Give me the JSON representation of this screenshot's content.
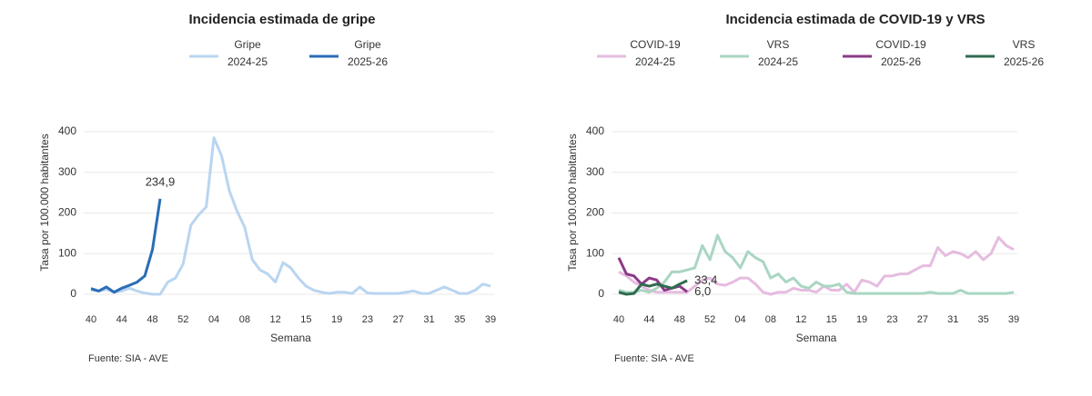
{
  "chart_data": [
    {
      "type": "line",
      "title": "Incidencia estimada de gripe",
      "y_label": "Tasa por 100.000 habitantes",
      "x_label": "Semana",
      "source": "Fuente: SIA - AVE",
      "categories": [
        "40",
        null,
        null,
        null,
        "44",
        null,
        null,
        null,
        "48",
        null,
        null,
        null,
        "52",
        null,
        null,
        null,
        "04",
        null,
        null,
        null,
        "08",
        null,
        null,
        null,
        "12",
        null,
        null,
        null,
        "15",
        null,
        null,
        null,
        "19",
        null,
        null,
        null,
        "23",
        null,
        null,
        null,
        "27",
        null,
        null,
        null,
        "31",
        null,
        null,
        null,
        "35",
        null,
        null,
        null,
        "39"
      ],
      "ylim": [
        0,
        450
      ],
      "yticks": [
        0,
        100,
        200,
        300,
        400
      ],
      "grid": true,
      "series": [
        {
          "name": "Gripe 2024-25",
          "color": "#b9d5f0",
          "values": [
            10,
            8,
            12,
            5,
            8,
            15,
            8,
            3,
            0,
            0,
            30,
            40,
            75,
            170,
            195,
            215,
            385,
            340,
            255,
            205,
            165,
            85,
            60,
            50,
            30,
            78,
            65,
            40,
            20,
            10,
            5,
            2,
            5,
            5,
            2,
            18,
            3,
            2,
            2,
            2,
            2,
            5,
            8,
            2,
            2,
            10,
            18,
            10,
            2,
            2,
            10,
            25,
            20
          ]
        },
        {
          "name": "Gripe 2025-26",
          "color": "#2a6db5",
          "values": [
            14,
            8,
            18,
            5,
            15,
            22,
            30,
            45,
            110,
            234.9,
            null,
            null,
            null,
            null,
            null,
            null,
            null,
            null,
            null,
            null,
            null,
            null,
            null,
            null,
            null,
            null,
            null,
            null,
            null,
            null,
            null,
            null,
            null,
            null,
            null,
            null,
            null,
            null,
            null,
            null,
            null,
            null,
            null,
            null,
            null,
            null,
            null,
            null,
            null,
            null,
            null,
            null,
            null
          ],
          "value_labels": [
            null,
            null,
            null,
            null,
            null,
            null,
            null,
            null,
            null,
            "234,9",
            null,
            null,
            null,
            null,
            null,
            null,
            null,
            null,
            null,
            null,
            null,
            null,
            null,
            null,
            null,
            null,
            null,
            null,
            null,
            null,
            null,
            null,
            null,
            null,
            null,
            null,
            null,
            null,
            null,
            null,
            null,
            null,
            null,
            null,
            null,
            null,
            null,
            null,
            null,
            null,
            null,
            null,
            null
          ]
        }
      ]
    },
    {
      "type": "line",
      "title": "Incidencia estimada de COVID-19 y VRS",
      "y_label": "Tasa por 100.000 habitantes",
      "x_label": "Semana",
      "source": "Fuente: SIA - AVE",
      "categories": [
        "40",
        null,
        null,
        null,
        "44",
        null,
        null,
        null,
        "48",
        null,
        null,
        null,
        "52",
        null,
        null,
        null,
        "04",
        null,
        null,
        null,
        "08",
        null,
        null,
        null,
        "12",
        null,
        null,
        null,
        "15",
        null,
        null,
        null,
        "19",
        null,
        null,
        null,
        "23",
        null,
        null,
        null,
        "27",
        null,
        null,
        null,
        "31",
        null,
        null,
        null,
        "35",
        null,
        null,
        null,
        "39"
      ],
      "ylim": [
        0,
        450
      ],
      "yticks": [
        0,
        100,
        200,
        300,
        400
      ],
      "grid": true,
      "series": [
        {
          "name": "COVID-19 2024-25",
          "color": "#e6bce0",
          "values": [
            55,
            45,
            30,
            20,
            10,
            5,
            5,
            5,
            5,
            5,
            20,
            35,
            40,
            25,
            22,
            30,
            40,
            40,
            25,
            5,
            0,
            5,
            5,
            15,
            10,
            10,
            5,
            20,
            10,
            10,
            25,
            5,
            35,
            30,
            20,
            45,
            45,
            50,
            50,
            60,
            70,
            70,
            115,
            95,
            105,
            100,
            90,
            105,
            85,
            100,
            140,
            120,
            110
          ]
        },
        {
          "name": "VRS 2024-25",
          "color": "#a9d6c2",
          "values": [
            10,
            5,
            5,
            10,
            5,
            15,
            30,
            55,
            55,
            60,
            65,
            120,
            85,
            145,
            105,
            90,
            65,
            105,
            90,
            80,
            40,
            50,
            30,
            40,
            20,
            15,
            30,
            20,
            20,
            25,
            5,
            2,
            2,
            2,
            2,
            2,
            2,
            2,
            2,
            2,
            2,
            5,
            2,
            2,
            2,
            10,
            2,
            2,
            2,
            2,
            2,
            2,
            5
          ]
        },
        {
          "name": "COVID-19 2025-26",
          "color": "#8b3a87",
          "values": [
            90,
            50,
            45,
            25,
            40,
            35,
            10,
            15,
            20,
            6.0,
            null,
            null,
            null,
            null,
            null,
            null,
            null,
            null,
            null,
            null,
            null,
            null,
            null,
            null,
            null,
            null,
            null,
            null,
            null,
            null,
            null,
            null,
            null,
            null,
            null,
            null,
            null,
            null,
            null,
            null,
            null,
            null,
            null,
            null,
            null,
            null,
            null,
            null,
            null,
            null,
            null,
            null,
            null
          ],
          "value_labels": [
            null,
            null,
            null,
            null,
            null,
            null,
            null,
            null,
            null,
            "6,0",
            null,
            null,
            null,
            null,
            null,
            null,
            null,
            null,
            null,
            null,
            null,
            null,
            null,
            null,
            null,
            null,
            null,
            null,
            null,
            null,
            null,
            null,
            null,
            null,
            null,
            null,
            null,
            null,
            null,
            null,
            null,
            null,
            null,
            null,
            null,
            null,
            null,
            null,
            null,
            null,
            null,
            null,
            null
          ]
        },
        {
          "name": "VRS 2025-26",
          "color": "#2f6b50",
          "values": [
            5,
            0,
            2,
            25,
            20,
            25,
            20,
            15,
            25,
            33.4,
            null,
            null,
            null,
            null,
            null,
            null,
            null,
            null,
            null,
            null,
            null,
            null,
            null,
            null,
            null,
            null,
            null,
            null,
            null,
            null,
            null,
            null,
            null,
            null,
            null,
            null,
            null,
            null,
            null,
            null,
            null,
            null,
            null,
            null,
            null,
            null,
            null,
            null,
            null,
            null,
            null,
            null,
            null
          ],
          "value_labels": [
            null,
            null,
            null,
            null,
            null,
            null,
            null,
            null,
            null,
            "33,4",
            null,
            null,
            null,
            null,
            null,
            null,
            null,
            null,
            null,
            null,
            null,
            null,
            null,
            null,
            null,
            null,
            null,
            null,
            null,
            null,
            null,
            null,
            null,
            null,
            null,
            null,
            null,
            null,
            null,
            null,
            null,
            null,
            null,
            null,
            null,
            null,
            null,
            null,
            null,
            null,
            null,
            null,
            null
          ]
        }
      ]
    }
  ]
}
